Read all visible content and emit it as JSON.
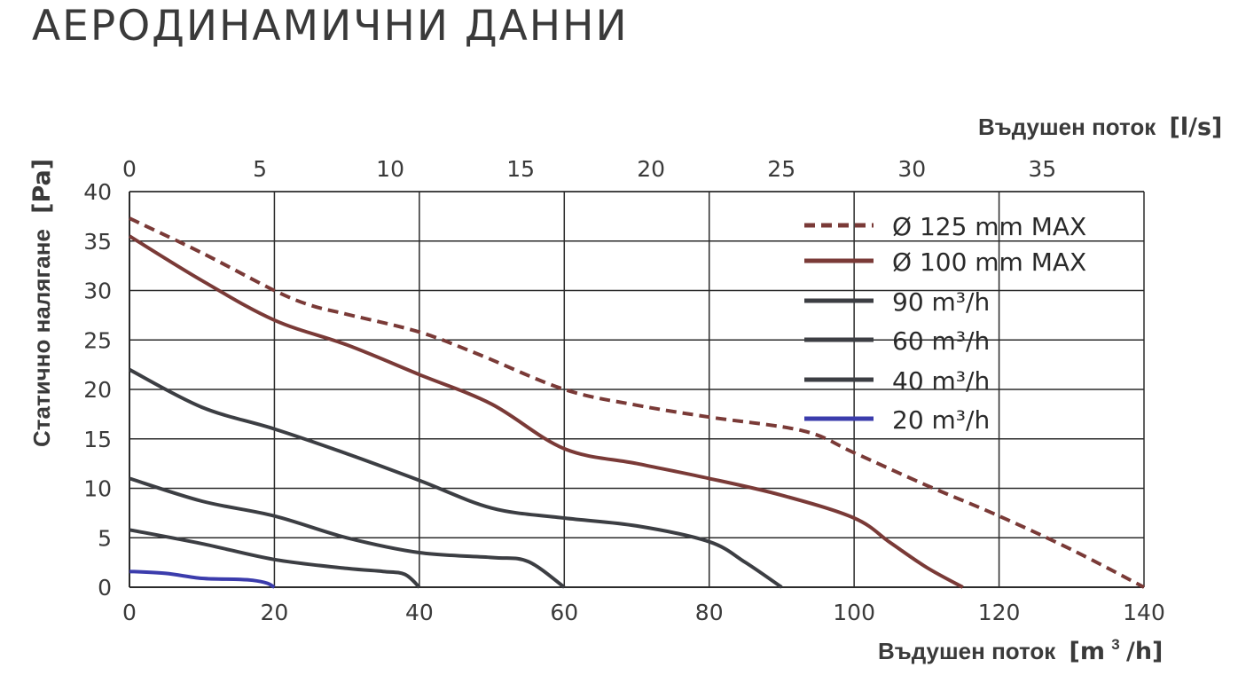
{
  "title": "АЕРОДИНАМИЧНИ ДАННИ",
  "chart_data": {
    "type": "line",
    "ylabel": "Статично налягане",
    "ylabel_unit": "[Pa]",
    "xlabel": "Въдушен поток",
    "xlabel_unit": "[m",
    "xlabel_unit_sup": "3",
    "xlabel_unit_end": "/h]",
    "x2label": "Въдушен поток",
    "x2label_unit": "[l/s]",
    "xlim": [
      0,
      140
    ],
    "ylim": [
      0,
      40
    ],
    "x2lim": [
      0,
      38.9
    ],
    "grid": true,
    "legend_position": "top-right",
    "x_ticks": [
      "0",
      "20",
      "40",
      "60",
      "80",
      "100",
      "120",
      "140"
    ],
    "y_ticks": [
      "0",
      "5",
      "10",
      "15",
      "20",
      "25",
      "30",
      "35",
      "40"
    ],
    "x2_ticks": [
      "0",
      "5",
      "10",
      "15",
      "20",
      "25",
      "30",
      "35"
    ],
    "series": [
      {
        "name": "Ø 125 mm MAX",
        "color": "#7a3a37",
        "dashed": true,
        "x": [
          0,
          10,
          20,
          25,
          30,
          40,
          48,
          60,
          70,
          80,
          93,
          100,
          110,
          120,
          130,
          140
        ],
        "y": [
          37.3,
          33.8,
          30.0,
          28.5,
          27.6,
          25.8,
          23.6,
          20.0,
          18.4,
          17.2,
          15.8,
          13.6,
          10.3,
          7.2,
          3.8,
          0
        ]
      },
      {
        "name": "Ø 100 mm MAX",
        "color": "#7a3a37",
        "dashed": false,
        "x": [
          0,
          10,
          20,
          30,
          40,
          50,
          60,
          70,
          80,
          90,
          100,
          105,
          110,
          115
        ],
        "y": [
          35.5,
          31.0,
          27.0,
          24.5,
          21.5,
          18.5,
          14.0,
          12.5,
          11.0,
          9.3,
          7.0,
          4.5,
          2.0,
          0
        ]
      },
      {
        "name": "90 m³/h",
        "color": "#3c3e43",
        "dashed": false,
        "x": [
          0,
          10,
          20,
          30,
          40,
          50,
          60,
          70,
          80,
          85,
          90
        ],
        "y": [
          22.0,
          18.2,
          16.0,
          13.5,
          10.8,
          8.0,
          7.0,
          6.2,
          4.6,
          2.5,
          0
        ]
      },
      {
        "name": "60 m³/h",
        "color": "#3c3e43",
        "dashed": false,
        "x": [
          0,
          10,
          20,
          30,
          40,
          50,
          55,
          60
        ],
        "y": [
          11.0,
          8.7,
          7.2,
          5.0,
          3.5,
          3.0,
          2.6,
          0
        ]
      },
      {
        "name": "40 m³/h",
        "color": "#3c3e43",
        "dashed": false,
        "x": [
          0,
          10,
          20,
          30,
          35,
          38,
          40
        ],
        "y": [
          5.8,
          4.4,
          2.8,
          1.9,
          1.6,
          1.3,
          0
        ]
      },
      {
        "name": "20 m³/h",
        "color": "#3b3cac",
        "dashed": false,
        "x": [
          0,
          5,
          10,
          15,
          17,
          19,
          20
        ],
        "y": [
          1.6,
          1.4,
          0.9,
          0.8,
          0.7,
          0.4,
          0
        ]
      }
    ]
  }
}
